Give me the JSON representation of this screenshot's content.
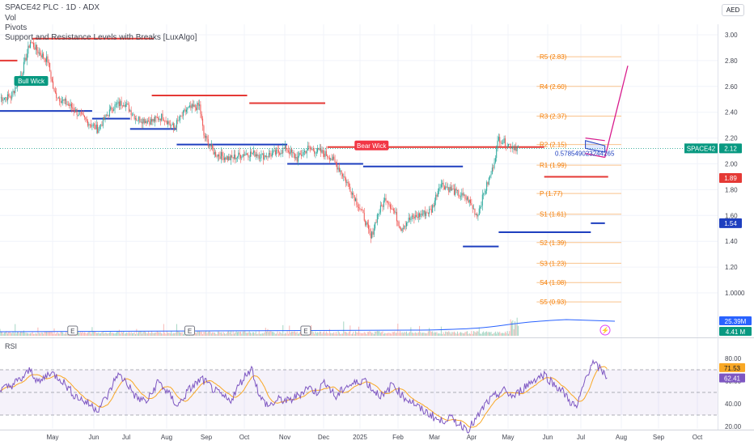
{
  "header": {
    "symbol_line": "SPACE42 PLC · 1D · ADX",
    "indicator_vol": "Vol",
    "indicator_pivots": "Pivots",
    "indicator_sr": " Support and Resistance Levels with Breaks [LuxAlgo]",
    "currency": "AED"
  },
  "colors": {
    "up": "#26a69a",
    "down": "#ef5350",
    "resistance": "#e53935",
    "support": "#1e3fbf",
    "pivot": "#f57c00",
    "channel": "#d81b8c",
    "rsi": "#7e57c2",
    "rsi_ma": "#f9a825"
  },
  "chart_data": [
    {
      "type": "candlestick",
      "symbol": "SPACE42",
      "x_ticks": [
        "May",
        "Jun",
        "Jul",
        "Aug",
        "Sep",
        "Oct",
        "Nov",
        "Dec",
        "2025",
        "Feb",
        "Mar",
        "Apr",
        "May",
        "Jun",
        "Jul",
        "Aug",
        "Sep",
        "Oct"
      ],
      "y_ticks": [
        "3.00",
        "2.80",
        "2.60",
        "2.40",
        "2.20",
        "2.00",
        "1.80",
        "1.60",
        "1.40",
        "1.20",
        "1.0000"
      ],
      "ylim": [
        0.62,
        3.05
      ],
      "anchors": [
        {
          "i": 0,
          "v": 2.51
        },
        {
          "i": 10,
          "v": 2.52
        },
        {
          "i": 20,
          "v": 2.7
        },
        {
          "i": 28,
          "v": 2.95
        },
        {
          "i": 36,
          "v": 2.86
        },
        {
          "i": 44,
          "v": 2.8
        },
        {
          "i": 50,
          "v": 2.55
        },
        {
          "i": 56,
          "v": 2.5
        },
        {
          "i": 66,
          "v": 2.44
        },
        {
          "i": 80,
          "v": 2.33
        },
        {
          "i": 90,
          "v": 2.27
        },
        {
          "i": 104,
          "v": 2.44
        },
        {
          "i": 114,
          "v": 2.48
        },
        {
          "i": 126,
          "v": 2.35
        },
        {
          "i": 140,
          "v": 2.33
        },
        {
          "i": 150,
          "v": 2.37
        },
        {
          "i": 160,
          "v": 2.28
        },
        {
          "i": 172,
          "v": 2.42
        },
        {
          "i": 184,
          "v": 2.45
        },
        {
          "i": 188,
          "v": 2.22
        },
        {
          "i": 198,
          "v": 2.08
        },
        {
          "i": 212,
          "v": 2.04
        },
        {
          "i": 226,
          "v": 2.08
        },
        {
          "i": 236,
          "v": 2.08
        },
        {
          "i": 242,
          "v": 2.06
        },
        {
          "i": 254,
          "v": 2.08
        },
        {
          "i": 264,
          "v": 2.12
        },
        {
          "i": 274,
          "v": 2.04
        },
        {
          "i": 284,
          "v": 2.12
        },
        {
          "i": 296,
          "v": 2.09
        },
        {
          "i": 304,
          "v": 2.06
        },
        {
          "i": 314,
          "v": 1.95
        },
        {
          "i": 326,
          "v": 1.76
        },
        {
          "i": 336,
          "v": 1.58
        },
        {
          "i": 342,
          "v": 1.42
        },
        {
          "i": 348,
          "v": 1.6
        },
        {
          "i": 356,
          "v": 1.74
        },
        {
          "i": 364,
          "v": 1.62
        },
        {
          "i": 370,
          "v": 1.5
        },
        {
          "i": 376,
          "v": 1.56
        },
        {
          "i": 386,
          "v": 1.6
        },
        {
          "i": 398,
          "v": 1.64
        },
        {
          "i": 406,
          "v": 1.85
        },
        {
          "i": 420,
          "v": 1.78
        },
        {
          "i": 432,
          "v": 1.72
        },
        {
          "i": 440,
          "v": 1.6
        },
        {
          "i": 446,
          "v": 1.76
        },
        {
          "i": 454,
          "v": 1.95
        },
        {
          "i": 460,
          "v": 2.2
        },
        {
          "i": 466,
          "v": 2.16
        },
        {
          "i": 478,
          "v": 2.12
        }
      ],
      "last_price": "2.12",
      "price_badges": [
        {
          "label": "SPACE42",
          "value": "2.12",
          "color": "#089981",
          "price": 2.12
        },
        {
          "label": "",
          "value": "1.89",
          "color": "#e53935",
          "price": 1.89
        },
        {
          "label": "",
          "value": "1.54",
          "color": "#1e3fbf",
          "price": 1.54
        }
      ],
      "pivots": [
        {
          "label": "R5 (2.83)",
          "value": 2.83
        },
        {
          "label": "R4 (2.60)",
          "value": 2.6
        },
        {
          "label": "R3 (2.37)",
          "value": 2.37
        },
        {
          "label": "R2 (2.15)",
          "value": 2.15
        },
        {
          "label": "R1 (1.99)",
          "value": 1.99
        },
        {
          "label": "P (1.77)",
          "value": 1.77
        },
        {
          "label": "S1 (1.61)",
          "value": 1.61
        },
        {
          "label": "S2 (1.39)",
          "value": 1.39
        },
        {
          "label": "S3 (1.23)",
          "value": 1.23
        },
        {
          "label": "S4 (1.08)",
          "value": 1.08
        },
        {
          "label": "S5 (0.93)",
          "value": 0.93
        }
      ],
      "resistance_levels": [
        {
          "from": -4,
          "to": 16,
          "v": 2.8
        },
        {
          "from": 30,
          "to": 142,
          "v": 2.97
        },
        {
          "from": 140,
          "to": 228,
          "v": 2.53
        },
        {
          "from": 230,
          "to": 300,
          "v": 2.47
        },
        {
          "from": 302,
          "to": 502,
          "v": 2.13
        },
        {
          "from": 502,
          "to": 561,
          "v": 1.9
        }
      ],
      "support_levels": [
        {
          "from": -4,
          "to": 85,
          "v": 2.41
        },
        {
          "from": 85,
          "to": 120,
          "v": 2.35
        },
        {
          "from": 120,
          "to": 163,
          "v": 2.27
        },
        {
          "from": 163,
          "to": 265,
          "v": 2.15
        },
        {
          "from": 265,
          "to": 335,
          "v": 2.0
        },
        {
          "from": 335,
          "to": 427,
          "v": 1.98
        },
        {
          "from": 427,
          "to": 460,
          "v": 1.36
        },
        {
          "from": 460,
          "to": 545,
          "v": 1.47
        },
        {
          "from": 545,
          "to": 558,
          "v": 1.54
        }
      ],
      "annotations": [
        {
          "text": "Bull Wick",
          "i": 28,
          "v": 2.63,
          "color": "#089981"
        },
        {
          "text": "Bear Wick",
          "i": 342,
          "v": 2.13,
          "color": "#f23645"
        }
      ],
      "channel_text": "0.578549023244265",
      "earnings_markers": [
        {
          "i": 67,
          "label": "E"
        },
        {
          "i": 175,
          "label": "E"
        },
        {
          "i": 282,
          "label": "E"
        }
      ],
      "volume_badges": [
        {
          "value": "25.39M",
          "color": "#2962ff"
        },
        {
          "value": "4.41 M",
          "color": "#089981"
        }
      ]
    },
    {
      "type": "line",
      "name": "RSI",
      "y_ticks": [
        "80.00",
        "60.00",
        "40.00",
        "20.00"
      ],
      "ylim": [
        14,
        86
      ],
      "upper_band": 70,
      "middle_band": 50,
      "lower_band": 30,
      "anchors": [
        {
          "i": 0,
          "v": 52
        },
        {
          "i": 8,
          "v": 55
        },
        {
          "i": 20,
          "v": 62
        },
        {
          "i": 28,
          "v": 70
        },
        {
          "i": 36,
          "v": 58
        },
        {
          "i": 46,
          "v": 68
        },
        {
          "i": 56,
          "v": 62
        },
        {
          "i": 68,
          "v": 48
        },
        {
          "i": 78,
          "v": 42
        },
        {
          "i": 90,
          "v": 35
        },
        {
          "i": 100,
          "v": 48
        },
        {
          "i": 108,
          "v": 66
        },
        {
          "i": 116,
          "v": 60
        },
        {
          "i": 126,
          "v": 45
        },
        {
          "i": 136,
          "v": 42
        },
        {
          "i": 146,
          "v": 60
        },
        {
          "i": 156,
          "v": 48
        },
        {
          "i": 164,
          "v": 38
        },
        {
          "i": 174,
          "v": 52
        },
        {
          "i": 186,
          "v": 62
        },
        {
          "i": 200,
          "v": 50
        },
        {
          "i": 212,
          "v": 42
        },
        {
          "i": 224,
          "v": 62
        },
        {
          "i": 232,
          "v": 72
        },
        {
          "i": 240,
          "v": 45
        },
        {
          "i": 248,
          "v": 38
        },
        {
          "i": 258,
          "v": 44
        },
        {
          "i": 266,
          "v": 42
        },
        {
          "i": 276,
          "v": 48
        },
        {
          "i": 284,
          "v": 55
        },
        {
          "i": 292,
          "v": 50
        },
        {
          "i": 300,
          "v": 60
        },
        {
          "i": 310,
          "v": 45
        },
        {
          "i": 318,
          "v": 55
        },
        {
          "i": 328,
          "v": 58
        },
        {
          "i": 336,
          "v": 62
        },
        {
          "i": 344,
          "v": 52
        },
        {
          "i": 354,
          "v": 46
        },
        {
          "i": 362,
          "v": 58
        },
        {
          "i": 372,
          "v": 46
        },
        {
          "i": 380,
          "v": 42
        },
        {
          "i": 388,
          "v": 35
        },
        {
          "i": 398,
          "v": 30
        },
        {
          "i": 406,
          "v": 24
        },
        {
          "i": 414,
          "v": 28
        },
        {
          "i": 424,
          "v": 22
        },
        {
          "i": 432,
          "v": 18
        },
        {
          "i": 440,
          "v": 27
        },
        {
          "i": 448,
          "v": 40
        },
        {
          "i": 456,
          "v": 46
        },
        {
          "i": 464,
          "v": 52
        },
        {
          "i": 474,
          "v": 46
        },
        {
          "i": 484,
          "v": 55
        },
        {
          "i": 494,
          "v": 62
        },
        {
          "i": 502,
          "v": 66
        },
        {
          "i": 510,
          "v": 58
        },
        {
          "i": 518,
          "v": 52
        },
        {
          "i": 526,
          "v": 42
        },
        {
          "i": 532,
          "v": 36
        },
        {
          "i": 540,
          "v": 62
        },
        {
          "i": 546,
          "v": 76
        },
        {
          "i": 552,
          "v": 72
        },
        {
          "i": 560,
          "v": 64
        }
      ],
      "ma_last": "71.53",
      "rsi_last": "62.41"
    }
  ]
}
